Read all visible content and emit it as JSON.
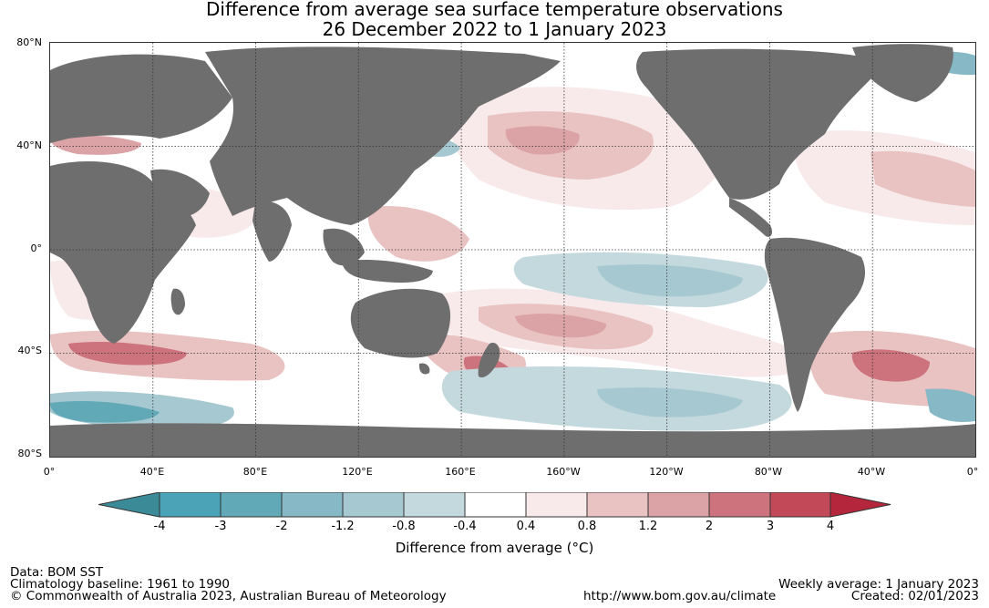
{
  "title": {
    "line1": "Difference from average sea surface temperature observations",
    "line2": "26 December 2022 to 1 January 2023"
  },
  "map": {
    "lat_labels": [
      "80°N",
      "40°N",
      "0°",
      "40°S",
      "80°S"
    ],
    "lon_labels": [
      "0°",
      "40°E",
      "80°E",
      "120°E",
      "160°E",
      "160°W",
      "120°W",
      "80°W",
      "40°W",
      "0°"
    ],
    "land_color": "#6e6e6e"
  },
  "colorbar": {
    "ticks": [
      "-4",
      "-3",
      "-2",
      "-1.2",
      "-0.8",
      "-0.4",
      "0.4",
      "0.8",
      "1.2",
      "2",
      "3",
      "4"
    ],
    "colors": [
      "#3a8a97",
      "#4aa3b6",
      "#62a9b8",
      "#87b8c5",
      "#a6c8d1",
      "#c4d9de",
      "#ffffff",
      "#f8eaea",
      "#e9c2c2",
      "#dba3a6",
      "#cd737d",
      "#c24a58",
      "#b3263c"
    ],
    "label": "Difference from average (°C)"
  },
  "footer": {
    "data_source": "Data: BOM SST",
    "baseline": "Climatology baseline: 1961 to 1990",
    "copyright": "© Commonwealth of Australia 2023, Australian Bureau of Meteorology",
    "url": "http://www.bom.gov.au/climate",
    "weekly": "Weekly average: 1 January 2023",
    "created": "Created: 02/01/2023"
  }
}
